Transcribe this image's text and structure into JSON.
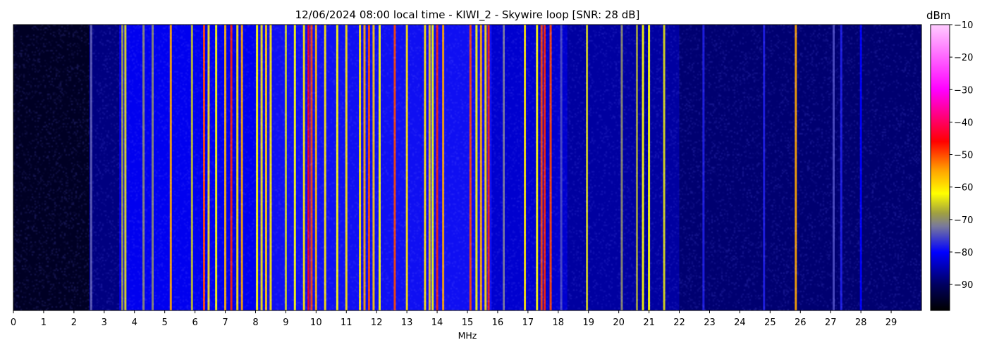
{
  "chart_data": {
    "type": "heatmap",
    "title": "12/06/2024 08:00 local time - KIWI_2 - Skywire loop [SNR: 28 dB]",
    "xlabel": "MHz",
    "ylabel": "",
    "xlim": [
      0,
      30
    ],
    "x_ticks": [
      "0",
      "1",
      "2",
      "3",
      "4",
      "5",
      "6",
      "7",
      "8",
      "9",
      "10",
      "11",
      "12",
      "13",
      "14",
      "15",
      "16",
      "17",
      "18",
      "19",
      "20",
      "21",
      "22",
      "23",
      "24",
      "25",
      "26",
      "27",
      "28",
      "29"
    ],
    "colorbar": {
      "label": "dBm",
      "range": [
        -98,
        -10
      ],
      "ticks": [
        "−10",
        "−20",
        "−30",
        "−40",
        "−50",
        "−60",
        "−70",
        "−80",
        "−90"
      ],
      "colormap": [
        {
          "dbm": -98,
          "color": "#000000"
        },
        {
          "dbm": -90,
          "color": "#000060"
        },
        {
          "dbm": -80,
          "color": "#0000ff"
        },
        {
          "dbm": -72,
          "color": "#7a7a9a"
        },
        {
          "dbm": -68,
          "color": "#a0a040"
        },
        {
          "dbm": -62,
          "color": "#ffff00"
        },
        {
          "dbm": -55,
          "color": "#ffa500"
        },
        {
          "dbm": -46,
          "color": "#ff0000"
        },
        {
          "dbm": -30,
          "color": "#ff00ff"
        },
        {
          "dbm": -10,
          "color": "#ffccff"
        }
      ]
    },
    "noise_floor": [
      {
        "from": 0,
        "to": 2.5,
        "level": -95
      },
      {
        "from": 2.5,
        "to": 3.5,
        "level": -88
      },
      {
        "from": 3.5,
        "to": 8.0,
        "level": -81
      },
      {
        "from": 8.0,
        "to": 15.8,
        "level": -79
      },
      {
        "from": 15.8,
        "to": 18.3,
        "level": -83
      },
      {
        "from": 18.3,
        "to": 22.0,
        "level": -86
      },
      {
        "from": 22.0,
        "to": 30.0,
        "level": -89
      }
    ],
    "signals": [
      {
        "freq": 2.57,
        "level": -74
      },
      {
        "freq": 3.6,
        "level": -68
      },
      {
        "freq": 3.7,
        "level": -64
      },
      {
        "freq": 4.3,
        "level": -70
      },
      {
        "freq": 4.6,
        "level": -70
      },
      {
        "freq": 5.2,
        "level": -55
      },
      {
        "freq": 5.9,
        "level": -66
      },
      {
        "freq": 6.3,
        "level": -50
      },
      {
        "freq": 6.45,
        "level": -60
      },
      {
        "freq": 6.7,
        "level": -62
      },
      {
        "freq": 7.0,
        "level": -56
      },
      {
        "freq": 7.2,
        "level": -48
      },
      {
        "freq": 7.4,
        "level": -60
      },
      {
        "freq": 7.55,
        "level": -55
      },
      {
        "freq": 8.05,
        "level": -62
      },
      {
        "freq": 8.2,
        "level": -60
      },
      {
        "freq": 8.35,
        "level": -58
      },
      {
        "freq": 8.5,
        "level": -60
      },
      {
        "freq": 9.0,
        "level": -65
      },
      {
        "freq": 9.3,
        "level": -62
      },
      {
        "freq": 9.6,
        "level": -60
      },
      {
        "freq": 9.75,
        "level": -45
      },
      {
        "freq": 9.85,
        "level": -50
      },
      {
        "freq": 10.0,
        "level": -56
      },
      {
        "freq": 10.3,
        "level": -60
      },
      {
        "freq": 10.7,
        "level": -62
      },
      {
        "freq": 11.0,
        "level": -60
      },
      {
        "freq": 11.45,
        "level": -60
      },
      {
        "freq": 11.6,
        "level": -55
      },
      {
        "freq": 11.75,
        "level": -50
      },
      {
        "freq": 11.9,
        "level": -58
      },
      {
        "freq": 12.1,
        "level": -62
      },
      {
        "freq": 12.6,
        "level": -50
      },
      {
        "freq": 13.0,
        "level": -60
      },
      {
        "freq": 13.6,
        "level": -60
      },
      {
        "freq": 13.75,
        "level": -58
      },
      {
        "freq": 13.85,
        "level": -62
      },
      {
        "freq": 14.0,
        "level": -48
      },
      {
        "freq": 14.2,
        "level": -55
      },
      {
        "freq": 15.1,
        "level": -50
      },
      {
        "freq": 15.3,
        "level": -62
      },
      {
        "freq": 15.45,
        "level": -55
      },
      {
        "freq": 15.6,
        "level": -60
      },
      {
        "freq": 15.7,
        "level": -48
      },
      {
        "freq": 16.2,
        "level": -72
      },
      {
        "freq": 16.9,
        "level": -60
      },
      {
        "freq": 17.3,
        "level": -62
      },
      {
        "freq": 17.45,
        "level": -50
      },
      {
        "freq": 17.55,
        "level": -48
      },
      {
        "freq": 17.75,
        "level": -50
      },
      {
        "freq": 18.1,
        "level": -75
      },
      {
        "freq": 18.95,
        "level": -65
      },
      {
        "freq": 20.1,
        "level": -70
      },
      {
        "freq": 20.6,
        "level": -68
      },
      {
        "freq": 20.8,
        "level": -62
      },
      {
        "freq": 21.0,
        "level": -62
      },
      {
        "freq": 21.5,
        "level": -64
      },
      {
        "freq": 22.8,
        "level": -78
      },
      {
        "freq": 24.8,
        "level": -78
      },
      {
        "freq": 25.85,
        "level": -55
      },
      {
        "freq": 27.1,
        "level": -75
      },
      {
        "freq": 27.35,
        "level": -78
      },
      {
        "freq": 28.0,
        "level": -80
      }
    ]
  }
}
